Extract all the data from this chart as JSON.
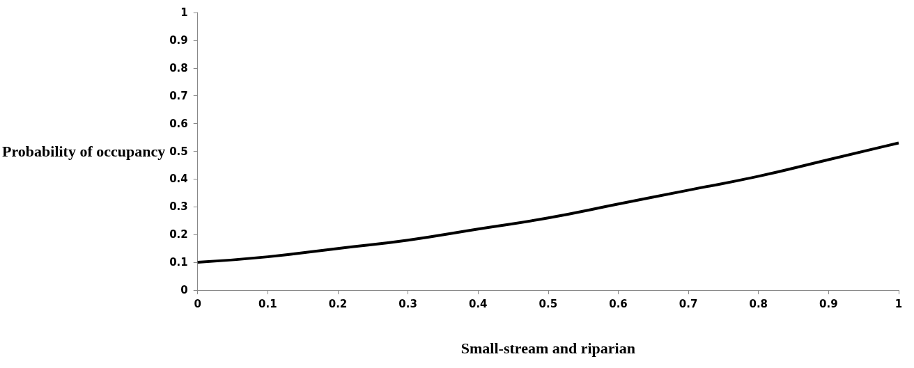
{
  "chart_data": {
    "type": "line",
    "xlabel": "Small-stream and riparian",
    "ylabel": "Probability of occupancy",
    "x": [
      0,
      0.1,
      0.2,
      0.3,
      0.4,
      0.5,
      0.6,
      0.7,
      0.8,
      0.9,
      1
    ],
    "series": [
      {
        "color": "#000000",
        "values": [
          0.1,
          0.12,
          0.15,
          0.18,
          0.22,
          0.26,
          0.31,
          0.36,
          0.41,
          0.47,
          0.53
        ]
      }
    ],
    "xlim": [
      0,
      1
    ],
    "xticks": [
      0,
      0.1,
      0.2,
      0.3,
      0.4,
      0.5,
      0.6,
      0.7,
      0.8,
      0.9,
      1
    ],
    "ylim": [
      0,
      1
    ],
    "yticks": [
      0,
      0.1,
      0.2,
      0.3,
      0.4,
      0.5,
      0.6,
      0.7,
      0.8,
      0.9,
      1
    ],
    "grid": false,
    "marker": "none",
    "line_style": "solid"
  }
}
